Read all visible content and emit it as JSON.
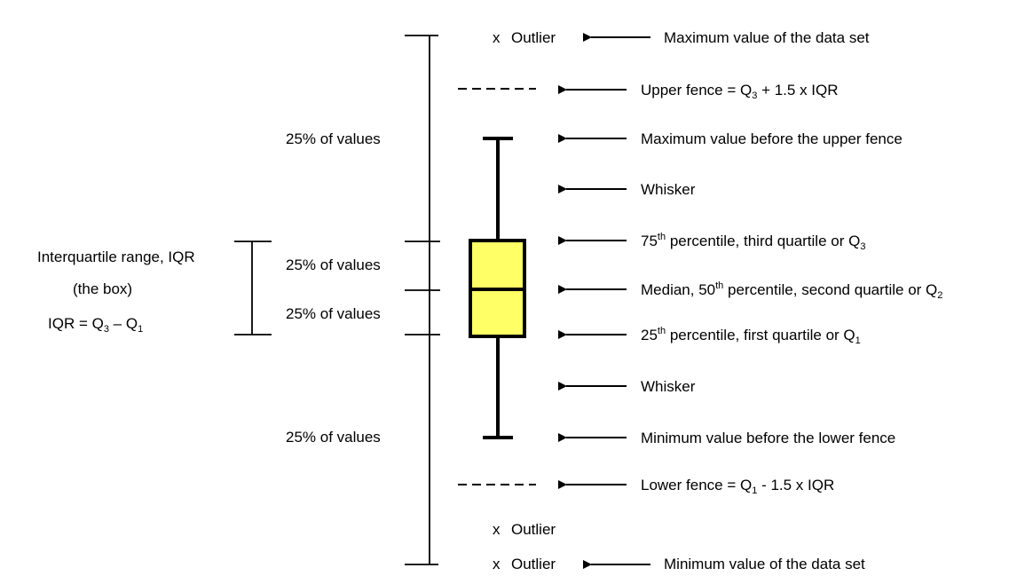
{
  "scale": {
    "labels": [
      {
        "text": "25% of values"
      },
      {
        "text": "25% of values"
      },
      {
        "text": "25% of values"
      },
      {
        "text": "25% of values"
      }
    ]
  },
  "iqr": {
    "line1": "Interquartile range, IQR",
    "line2": "(the box)",
    "formula_prefix": "IQR = Q",
    "q3_sub": "3",
    "formula_minus": " – Q",
    "q1_sub": "1"
  },
  "outliers": {
    "marker": "x",
    "label": "Outlier"
  },
  "annotations": {
    "max_data_set": "Maximum value of the data set",
    "upper_fence_prefix": "Upper fence = Q",
    "upper_fence_sub": "3",
    "upper_fence_suffix": " + 1.5 x IQR",
    "max_before_upper": "Maximum value before the upper fence",
    "whisker_upper": "Whisker",
    "p75_num": "75",
    "p75_sup": "th",
    "p75_text": " percentile, third quartile or Q",
    "p75_sub": "3",
    "median_text": "Median, 50",
    "median_sup": "th",
    "median_text2": " percentile, second quartile or Q",
    "median_sub": "2",
    "p25_num": "25",
    "p25_sup": "th",
    "p25_text": " percentile, first quartile or Q",
    "p25_sub": "1",
    "whisker_lower": "Whisker",
    "min_before_lower": "Minimum value before the lower fence",
    "lower_fence_prefix": "Lower fence = Q",
    "lower_fence_sub": "1",
    "lower_fence_suffix": " - 1.5 x IQR",
    "min_data_set": "Minimum value of the data set"
  },
  "colors": {
    "box_fill": "#ffff66",
    "stroke": "#000000"
  }
}
